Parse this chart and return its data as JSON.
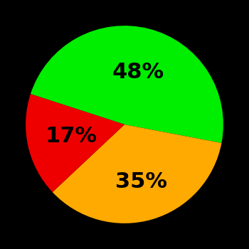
{
  "slices": [
    48,
    35,
    17
  ],
  "colors": [
    "#00ee00",
    "#ffaa00",
    "#ee0000"
  ],
  "labels": [
    "48%",
    "35%",
    "17%"
  ],
  "background_color": "#000000",
  "startangle": 162,
  "figsize": [
    3.5,
    3.5
  ],
  "dpi": 100,
  "label_fontsize": 22,
  "label_fontweight": "bold",
  "label_positions_r": [
    0.55,
    0.6,
    0.55
  ]
}
